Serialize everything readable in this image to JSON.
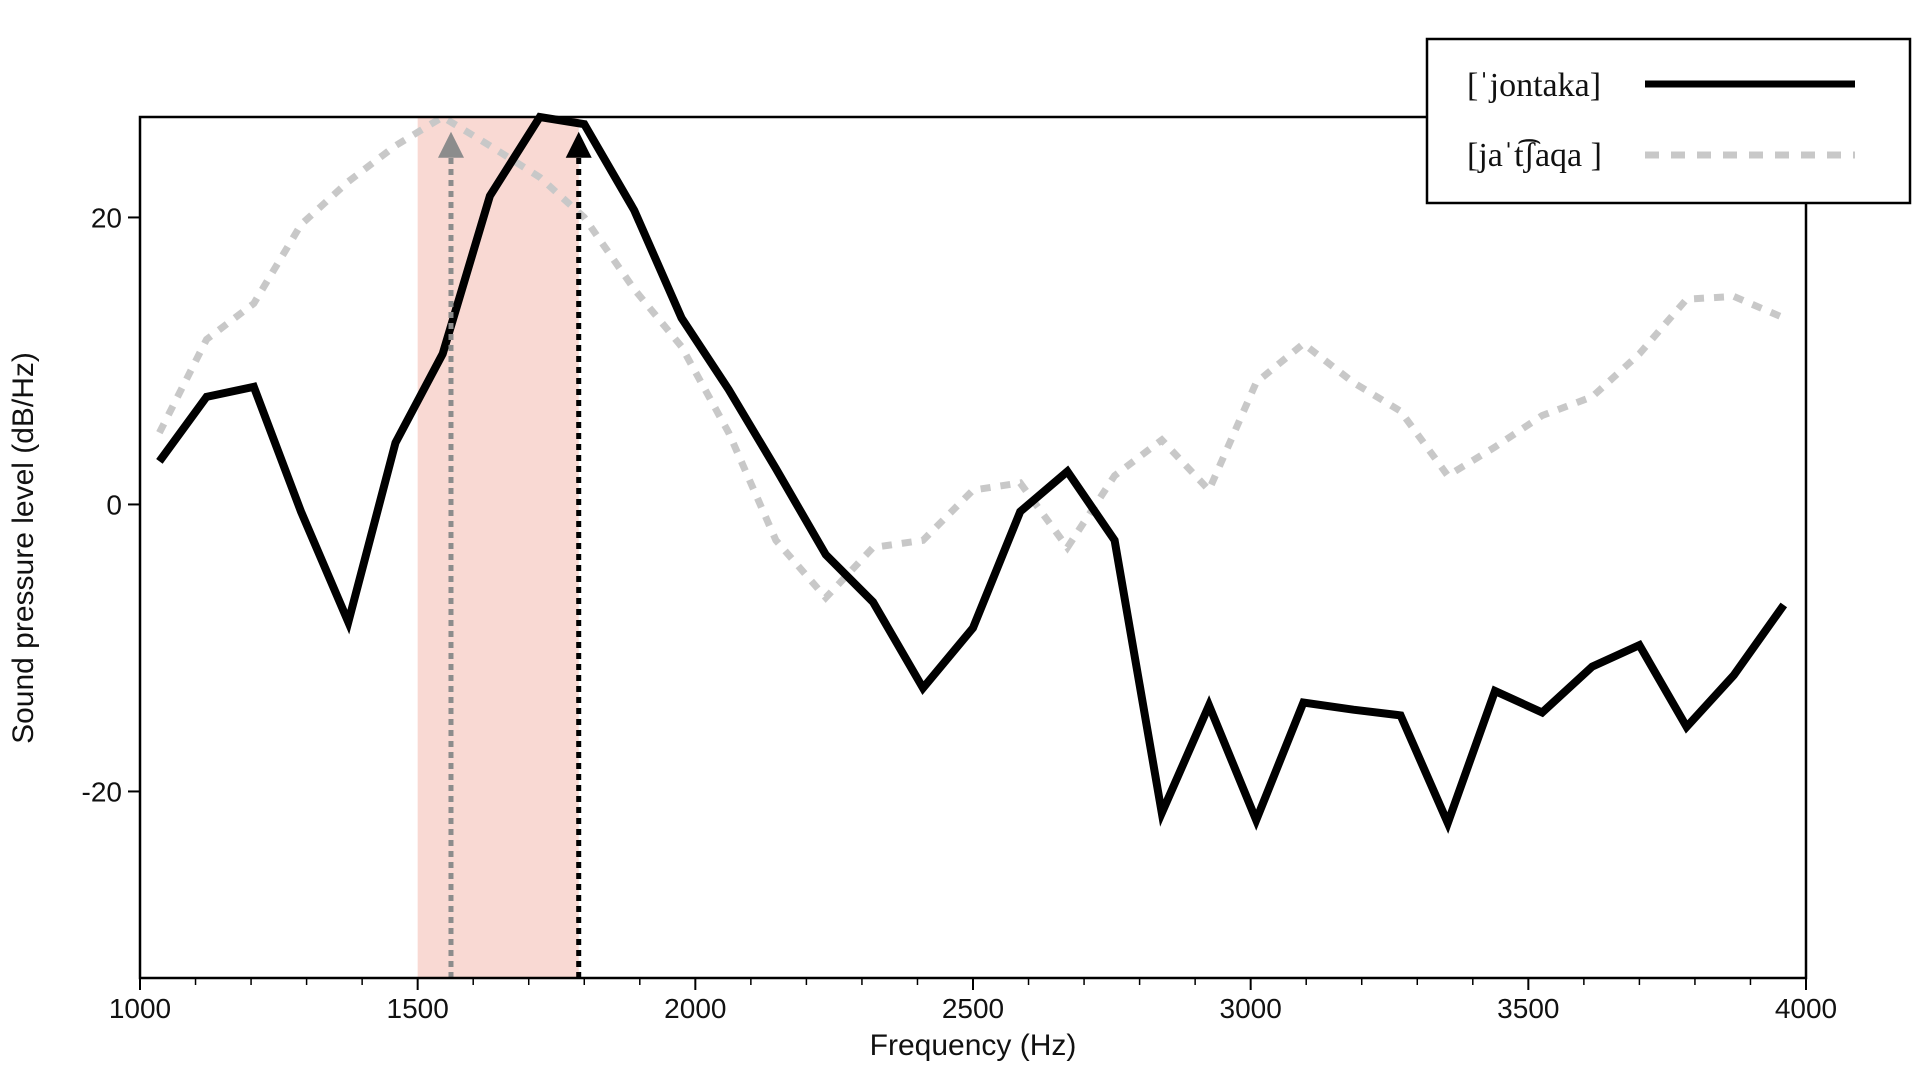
{
  "chart_data": {
    "type": "line",
    "title": "",
    "xlabel": "Frequency (Hz)",
    "ylabel": "Sound pressure level (dB/Hz)",
    "xlim": [
      1000,
      4000
    ],
    "ylim": [
      -33,
      27
    ],
    "x_ticks": [
      1000,
      1500,
      2000,
      2500,
      3000,
      3500,
      4000
    ],
    "y_ticks": [
      20,
      0,
      -20
    ],
    "grid": false,
    "legend_position": "top-right",
    "highlight_band": {
      "x_start": 1500,
      "x_end": 1790,
      "color": "#f9d9d3"
    },
    "series": [
      {
        "name": "[ˈjontaka]",
        "color": "#000000",
        "dash": "solid",
        "x": [
          1035,
          1120,
          1205,
          1290,
          1375,
          1460,
          1545,
          1630,
          1720,
          1800,
          1890,
          1975,
          2060,
          2145,
          2235,
          2320,
          2410,
          2500,
          2585,
          2670,
          2755,
          2840,
          2925,
          3010,
          3095,
          3185,
          3270,
          3355,
          3440,
          3525,
          3615,
          3700,
          3785,
          3870,
          3960
        ],
        "y": [
          3,
          7.5,
          8.2,
          -0.5,
          -8.2,
          4.3,
          10.5,
          21.5,
          27,
          26.5,
          20.5,
          13,
          8,
          2.5,
          -3.5,
          -6.8,
          -12.8,
          -8.6,
          -0.5,
          2.3,
          -2.5,
          -21.5,
          -14,
          -22,
          -13.8,
          -14.3,
          -14.7,
          -22.2,
          -13,
          -14.5,
          -11.3,
          -9.8,
          -15.5,
          -11.9,
          -7
        ]
      },
      {
        "name": "[jaˈt͡ʃaqa ]",
        "color": "#c8c8c8",
        "dash": "dotted",
        "x": [
          1035,
          1120,
          1205,
          1290,
          1375,
          1460,
          1545,
          1630,
          1720,
          1800,
          1890,
          1975,
          2060,
          2145,
          2235,
          2320,
          2410,
          2500,
          2585,
          2670,
          2755,
          2840,
          2925,
          3010,
          3095,
          3185,
          3270,
          3355,
          3440,
          3525,
          3615,
          3700,
          3785,
          3870,
          3960
        ],
        "y": [
          5,
          11.5,
          14,
          19.5,
          22.5,
          25,
          27,
          25,
          22.8,
          20,
          15,
          11,
          5,
          -2.5,
          -6.5,
          -3,
          -2.5,
          1,
          1.5,
          -3,
          2,
          4.5,
          1,
          8.5,
          11.2,
          8.5,
          6.5,
          2,
          4,
          6.2,
          7.5,
          10.5,
          14.3,
          14.5,
          13
        ]
      }
    ],
    "annotations": [
      {
        "type": "arrow",
        "x": 1560,
        "from_y": -33,
        "to_y": 25,
        "color": "#8c8c8c"
      },
      {
        "type": "arrow",
        "x": 1790,
        "from_y": -33,
        "to_y": 25,
        "color": "#000000"
      }
    ]
  }
}
